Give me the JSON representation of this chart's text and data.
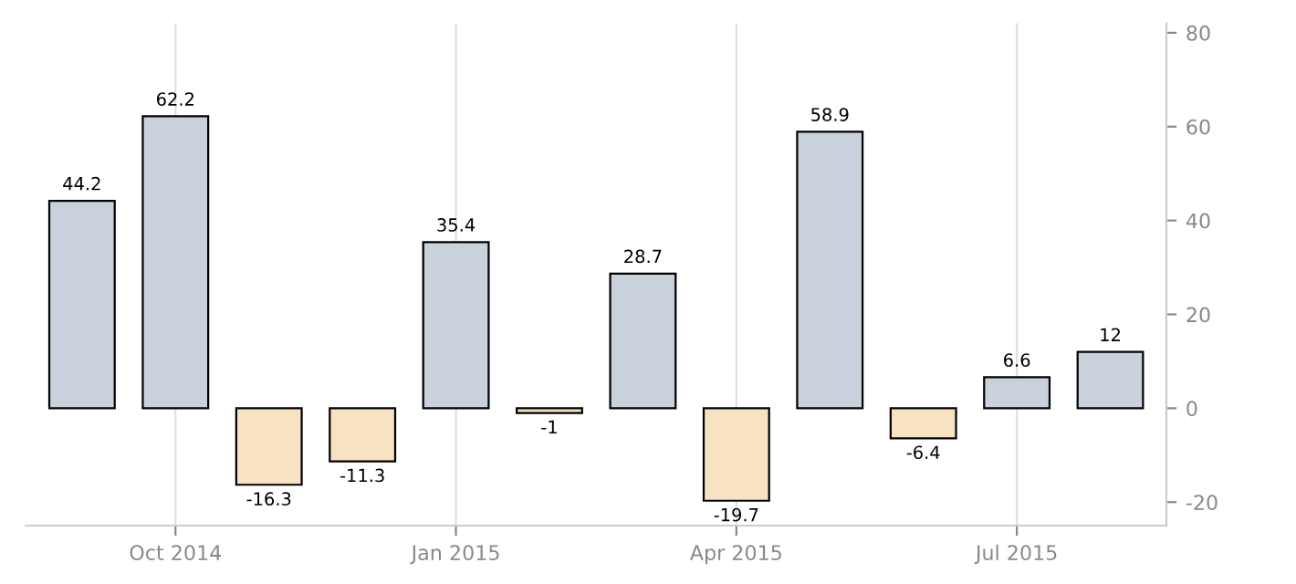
{
  "chart_data": {
    "type": "bar",
    "categories": [
      null,
      "Oct 2014",
      null,
      null,
      "Jan 2015",
      null,
      null,
      "Apr 2015",
      null,
      null,
      "Jul 2015",
      null
    ],
    "values": [
      44.2,
      62.2,
      -16.3,
      -11.3,
      35.4,
      -1,
      28.7,
      -19.7,
      58.9,
      -6.4,
      6.6,
      12
    ],
    "colors": [
      "#c9d2dc",
      "#c9d2dc",
      "#f7e2c2",
      "#f7e2c2",
      "#c9d2dc",
      "#f7e2c2",
      "#c9d2dc",
      "#f7e2c2",
      "#c9d2dc",
      "#f7e2c2",
      "#c9d2dc",
      "#c9d2dc"
    ],
    "ylim": [
      -25,
      82
    ],
    "yticks": [
      -20,
      0,
      20,
      40,
      60,
      80
    ],
    "grid": "x",
    "data_labels": true
  }
}
